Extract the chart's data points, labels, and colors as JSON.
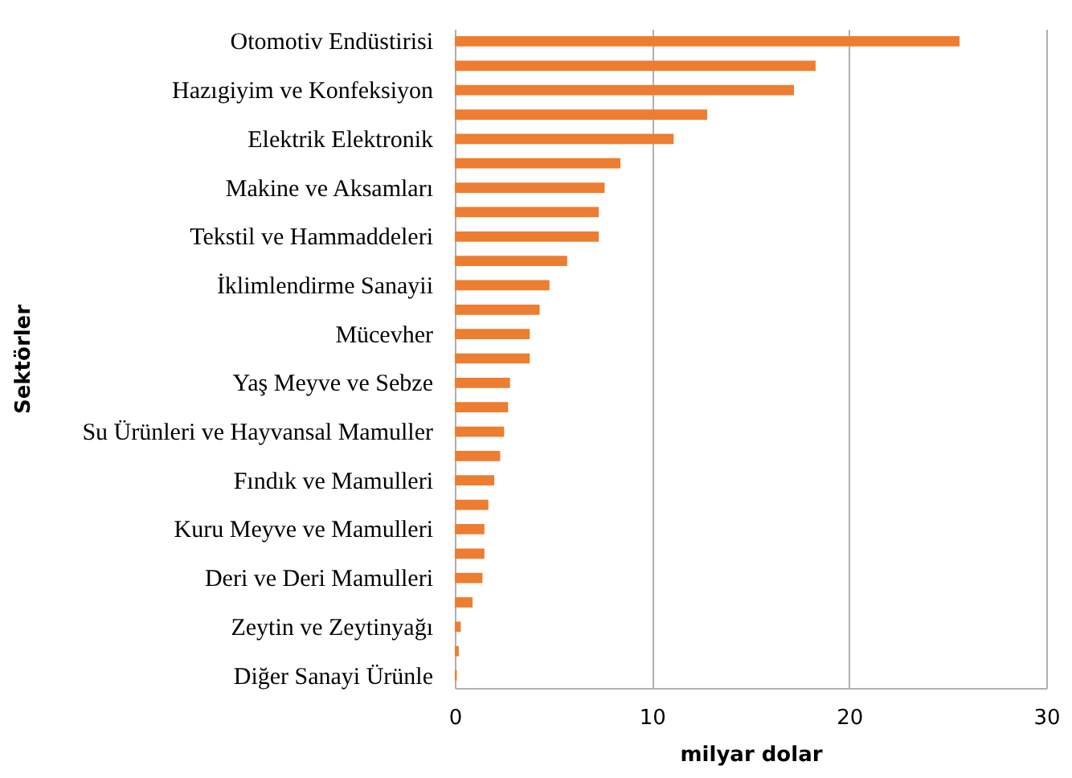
{
  "chart_data": {
    "type": "bar",
    "orientation": "horizontal",
    "xlabel": "milyar dolar",
    "ylabel": "Sektörler",
    "categories": [
      "Otomotiv Endüstirisi",
      null,
      "Hazıgiyim ve Konfeksiyon",
      null,
      "Elektrik Elektronik",
      null,
      "Makine ve Aksamları",
      null,
      "Tekstil ve Hammaddeleri",
      null,
      "İklimlendirme Sanayii",
      null,
      "Mücevher",
      null,
      "Yaş Meyve ve Sebze",
      null,
      "Su Ürünleri ve Hayvansal Mamuller",
      null,
      "Fındık ve Mamulleri",
      null,
      "Kuru Meyve ve Mamulleri",
      null,
      "Deri ve Deri Mamulleri",
      null,
      "Zeytin ve Zeytinyağı",
      null,
      "Diğer Sanayi Ürünle"
    ],
    "values": [
      25.6,
      18.3,
      17.2,
      12.8,
      11.1,
      8.4,
      7.6,
      7.3,
      7.3,
      5.7,
      4.8,
      4.3,
      3.8,
      3.8,
      2.8,
      2.7,
      2.5,
      2.3,
      2.0,
      1.7,
      1.5,
      1.5,
      1.4,
      0.9,
      0.3,
      0.2,
      0.1
    ],
    "color": "#ed7d31",
    "xlim": [
      0,
      30
    ],
    "xticks": [
      0,
      10,
      20,
      30
    ],
    "grid": "x"
  }
}
